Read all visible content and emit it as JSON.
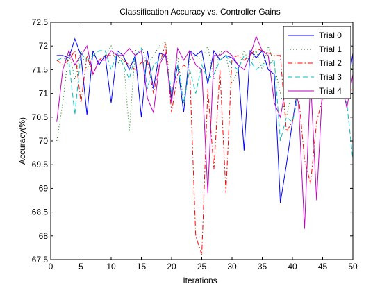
{
  "chart_data": {
    "type": "line",
    "title": "Classification Accuracy vs. Controller Gains",
    "xlabel": "Iterations",
    "ylabel": "Accuracy(%)",
    "xlim": [
      0,
      50
    ],
    "ylim": [
      67.5,
      72.5
    ],
    "xticks": [
      0,
      5,
      10,
      15,
      20,
      25,
      30,
      35,
      40,
      45,
      50
    ],
    "yticks": [
      67.5,
      68,
      68.5,
      69,
      69.5,
      70,
      70.5,
      71,
      71.5,
      72,
      72.5
    ],
    "grid": false,
    "legend_position": "top-right",
    "x": [
      1,
      2,
      3,
      4,
      5,
      6,
      7,
      8,
      9,
      10,
      11,
      12,
      13,
      14,
      15,
      16,
      17,
      18,
      19,
      20,
      21,
      22,
      23,
      24,
      25,
      26,
      27,
      28,
      29,
      30,
      31,
      32,
      33,
      34,
      35,
      36,
      37,
      38,
      39,
      40,
      41,
      42,
      43,
      44,
      45,
      46,
      47,
      48,
      49,
      50
    ],
    "series": [
      {
        "name": "Trial 0",
        "color": "#0000ff",
        "dash": "solid",
        "values": [
          71.8,
          71.8,
          71.75,
          72.15,
          71.8,
          70.55,
          71.9,
          71.6,
          71.8,
          70.8,
          71.9,
          71.8,
          71.5,
          71.8,
          70.5,
          71.9,
          71.1,
          71.85,
          71.8,
          70.9,
          71.6,
          70.6,
          71.9,
          71.8,
          71.9,
          71.2,
          71.9,
          71.7,
          71.8,
          71.75,
          71.6,
          69.8,
          71.9,
          71.75,
          71.9,
          71.5,
          71.4,
          68.7,
          69.5,
          70.4,
          71.2,
          71.3,
          71.2,
          71.3,
          71.25,
          71.25,
          71.3,
          71.3,
          71.0,
          71.85
        ]
      },
      {
        "name": "Trial 1",
        "color": "#008000",
        "dash": "dotted",
        "values": [
          70.0,
          70.8,
          71.9,
          71.3,
          71.9,
          71.5,
          71.8,
          71.7,
          71.8,
          72.0,
          71.6,
          71.8,
          70.2,
          71.9,
          72.0,
          71.6,
          71.8,
          72.0,
          72.1,
          70.9,
          71.8,
          70.8,
          71.7,
          71.8,
          71.7,
          72.0,
          71.3,
          71.9,
          71.8,
          71.2,
          71.5,
          71.9,
          71.6,
          71.9,
          71.5,
          72.0,
          71.6,
          71.0,
          70.5,
          71.1,
          71.1,
          71.0,
          71.1,
          71.1,
          71.0,
          71.1,
          71.2,
          71.0,
          71.1,
          71.6
        ]
      },
      {
        "name": "Trial 2",
        "color": "#ff0000",
        "dash": "dashdot",
        "values": [
          71.7,
          71.6,
          71.7,
          71.9,
          70.8,
          71.8,
          71.4,
          71.7,
          71.8,
          71.8,
          71.8,
          71.7,
          71.6,
          71.5,
          71.65,
          71.7,
          71.0,
          71.6,
          72.05,
          70.6,
          71.4,
          71.6,
          71.5,
          68.0,
          67.6,
          71.1,
          69.4,
          71.5,
          68.9,
          71.75,
          71.8,
          71.7,
          71.8,
          71.95,
          71.9,
          71.85,
          71.8,
          71.8,
          70.2,
          70.4,
          71.0,
          69.6,
          69.1,
          70.4,
          70.9,
          71.0,
          71.0,
          71.0,
          71.0,
          71.1
        ]
      },
      {
        "name": "Trial 3",
        "color": "#00bfbf",
        "dash": "dashed",
        "values": [
          71.7,
          71.75,
          71.7,
          70.55,
          71.85,
          71.7,
          71.8,
          71.9,
          71.9,
          71.5,
          71.85,
          71.6,
          71.3,
          71.8,
          71.95,
          71.1,
          71.6,
          71.7,
          71.8,
          71.0,
          71.6,
          70.8,
          71.5,
          71.0,
          71.6,
          71.3,
          71.4,
          71.7,
          71.8,
          71.6,
          71.5,
          71.8,
          71.7,
          71.5,
          71.6,
          71.6,
          71.7,
          70.0,
          70.5,
          70.4,
          71.0,
          71.0,
          71.0,
          71.0,
          71.0,
          71.0,
          71.0,
          71.0,
          70.8,
          69.6
        ]
      },
      {
        "name": "Trial 4",
        "color": "#bf00bf",
        "dash": "solid",
        "values": [
          70.4,
          71.5,
          71.9,
          71.6,
          71.8,
          72.0,
          71.4,
          71.7,
          71.7,
          71.9,
          71.8,
          71.8,
          71.95,
          71.8,
          71.9,
          70.9,
          70.6,
          71.6,
          71.85,
          70.8,
          71.95,
          71.7,
          71.9,
          71.6,
          71.5,
          68.9,
          71.8,
          71.8,
          71.9,
          71.8,
          71.6,
          71.5,
          71.8,
          72.2,
          71.9,
          71.8,
          70.8,
          70.5,
          71.2,
          71.3,
          70.8,
          68.15,
          71.3,
          68.75,
          71.2,
          71.3,
          71.2,
          71.3,
          70.7,
          71.4
        ]
      }
    ]
  }
}
